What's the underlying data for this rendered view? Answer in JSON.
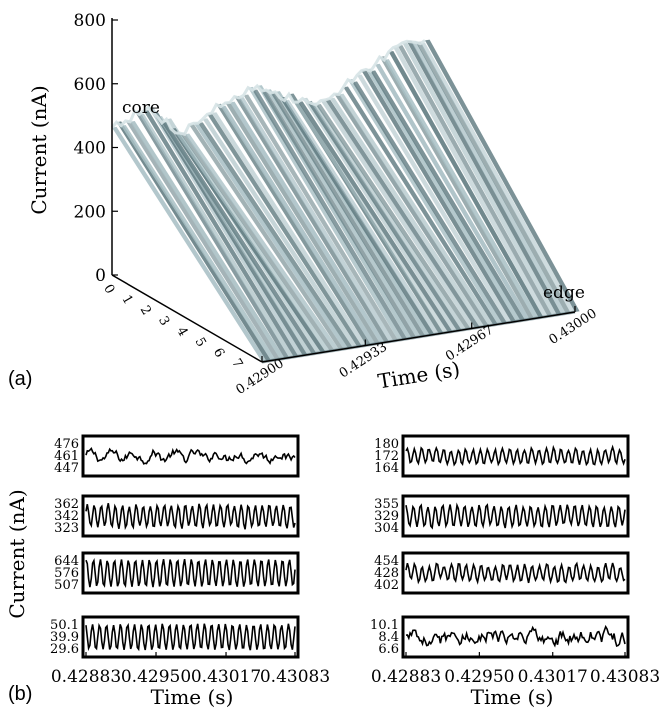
{
  "labels": {
    "panel_a": "(a)",
    "panel_b": "(b)"
  },
  "chart_data": [
    {
      "type": "surface3d",
      "panel": "(a)",
      "ylabel": "Current (nA)",
      "xlabel": "Time (s)",
      "zlim": [
        0,
        800
      ],
      "z_ticks": [
        "800",
        "600",
        "400",
        "200",
        "0"
      ],
      "x_ticks": [
        "0.42900",
        "0.42933",
        "0.42967",
        "0.43000"
      ],
      "depth_ticks": [
        "0",
        "1",
        "2",
        "3",
        "4",
        "5",
        "6",
        "7"
      ],
      "annotations": {
        "core": "core",
        "edge": "edge"
      },
      "colors": {
        "surface": "#a8bfc4",
        "surface_dark": "#5f7a80",
        "surface_light": "#d6e3e6"
      },
      "ridge_profile": {
        "time": [
          0.429,
          0.42912,
          0.42922,
          0.42933,
          0.42945,
          0.42955,
          0.42967,
          0.42978,
          0.4299,
          0.43
        ],
        "values": [
          470,
          500,
          410,
          470,
          520,
          470,
          430,
          500,
          560,
          590
        ]
      }
    },
    {
      "type": "line_stack",
      "panel": "(b) left",
      "ylabel": "Current (nA)",
      "xlabel": "Time (s)",
      "x_ticks": [
        "0.42883",
        "0.42950",
        "0.43017",
        "0.43083"
      ],
      "xlim": [
        0.42883,
        0.43083
      ],
      "series": [
        {
          "ticks": [
            "476",
            "461",
            "447"
          ],
          "ylim": [
            447,
            476
          ],
          "period": 0.0002,
          "amp": 0.2,
          "noise": 0.45,
          "phase": 0.0
        },
        {
          "ticks": [
            "362",
            "342",
            "323"
          ],
          "ylim": [
            323,
            362
          ],
          "period": 6.7e-05,
          "amp": 0.7,
          "noise": 0.18,
          "phase": 0.4
        },
        {
          "ticks": [
            "644",
            "576",
            "507"
          ],
          "ylim": [
            507,
            644
          ],
          "period": 6.7e-05,
          "amp": 0.85,
          "noise": 0.05,
          "phase": 1.2
        },
        {
          "ticks": [
            "50.1",
            "39.9",
            "29.6"
          ],
          "ylim": [
            29.6,
            50.1
          ],
          "period": 6.7e-05,
          "amp": 0.8,
          "noise": 0.07,
          "phase": 2.0
        }
      ]
    },
    {
      "type": "line_stack",
      "panel": "(b) right",
      "xlabel": "Time (s)",
      "x_ticks": [
        "0.42883",
        "0.42950",
        "0.43017",
        "0.43083"
      ],
      "xlim": [
        0.42883,
        0.43083
      ],
      "series": [
        {
          "ticks": [
            "180",
            "172",
            "164"
          ],
          "ylim": [
            164,
            180
          ],
          "period": 6.7e-05,
          "amp": 0.45,
          "noise": 0.2,
          "phase": 0.7
        },
        {
          "ticks": [
            "355",
            "329",
            "304"
          ],
          "ylim": [
            304,
            355
          ],
          "period": 6.7e-05,
          "amp": 0.65,
          "noise": 0.16,
          "phase": 1.6
        },
        {
          "ticks": [
            "454",
            "428",
            "402"
          ],
          "ylim": [
            402,
            454
          ],
          "period": 6.7e-05,
          "amp": 0.5,
          "noise": 0.25,
          "phase": 0.3
        },
        {
          "ticks": [
            "10.1",
            "8.4",
            "6.6"
          ],
          "ylim": [
            6.6,
            10.1
          ],
          "period": 6.7e-05,
          "amp": 0.05,
          "noise": 0.75,
          "phase": 0.0
        }
      ]
    }
  ]
}
